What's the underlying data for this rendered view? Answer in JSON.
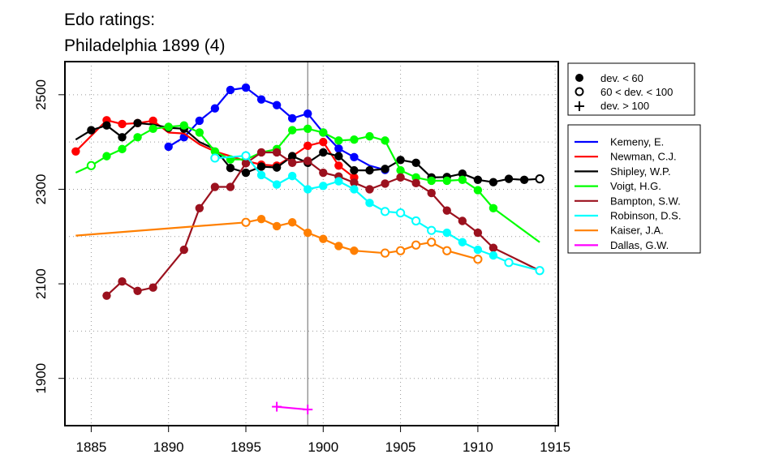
{
  "chart_data": {
    "type": "line",
    "title_lines": [
      "Edo ratings:",
      "Philadelphia 1899 (4)"
    ],
    "xlabel": "",
    "ylabel": "",
    "xlim": [
      1883.3,
      1915.2
    ],
    "ylim": [
      1800,
      2570
    ],
    "x_ticks": [
      1885,
      1890,
      1895,
      1900,
      1905,
      1910,
      1915
    ],
    "y_ticks": [
      1900,
      2100,
      2300,
      2500
    ],
    "y_grid": [
      1900,
      2000,
      2100,
      2200,
      2300,
      2400,
      2500
    ],
    "vline_x": 1899,
    "grid": true,
    "marker_legend": [
      {
        "symbol": "filled-circle",
        "label": "dev. < 60"
      },
      {
        "symbol": "open-circle",
        "label": "60 < dev. < 100"
      },
      {
        "symbol": "plus",
        "label": "dev. > 100"
      }
    ],
    "series": [
      {
        "name": "Kemeny, E.",
        "color": "#0000ff",
        "points": [
          [
            1890,
            2390,
            "f"
          ],
          [
            1891,
            2410,
            "f"
          ],
          [
            1892,
            2445,
            "f"
          ],
          [
            1893,
            2471,
            "f"
          ],
          [
            1894,
            2510,
            "f"
          ],
          [
            1895,
            2515,
            "f"
          ],
          [
            1896,
            2490,
            "f"
          ],
          [
            1897,
            2478,
            "f"
          ],
          [
            1898,
            2450,
            "f"
          ],
          [
            1899,
            2460,
            "f"
          ],
          [
            1900,
            2420,
            "f"
          ],
          [
            1901,
            2386,
            "f"
          ],
          [
            1902,
            2368,
            "f"
          ],
          [
            1903,
            2350,
            "n"
          ],
          [
            1904,
            2341,
            "f"
          ]
        ]
      },
      {
        "name": "Newman, C.J.",
        "color": "#ff0000",
        "points": [
          [
            1884,
            2380,
            "f"
          ],
          [
            1886,
            2446,
            "f"
          ],
          [
            1887,
            2438,
            "f"
          ],
          [
            1888,
            2440,
            "f"
          ],
          [
            1889,
            2445,
            "f"
          ],
          [
            1890,
            2420,
            "n"
          ],
          [
            1891,
            2418,
            "n"
          ],
          [
            1892,
            2395,
            "n"
          ],
          [
            1893,
            2380,
            "n"
          ],
          [
            1894,
            2370,
            "n"
          ],
          [
            1895,
            2360,
            "n"
          ],
          [
            1896,
            2352,
            "f"
          ],
          [
            1897,
            2350,
            "f"
          ],
          [
            1898,
            2370,
            "f"
          ],
          [
            1899,
            2392,
            "f"
          ],
          [
            1900,
            2400,
            "f"
          ],
          [
            1901,
            2350,
            "f"
          ],
          [
            1902,
            2325,
            "f"
          ]
        ]
      },
      {
        "name": "Shipley, W.P.",
        "color": "#000000",
        "points": [
          [
            1884,
            2405,
            "n"
          ],
          [
            1885,
            2425,
            "f"
          ],
          [
            1886,
            2435,
            "f"
          ],
          [
            1887,
            2410,
            "f"
          ],
          [
            1888,
            2440,
            "f"
          ],
          [
            1889,
            2437,
            "n"
          ],
          [
            1890,
            2430,
            "f"
          ],
          [
            1891,
            2428,
            "f"
          ],
          [
            1892,
            2400,
            "n"
          ],
          [
            1893,
            2385,
            "n"
          ],
          [
            1894,
            2345,
            "f"
          ],
          [
            1895,
            2335,
            "f"
          ],
          [
            1896,
            2348,
            "f"
          ],
          [
            1897,
            2346,
            "f"
          ],
          [
            1898,
            2370,
            "f"
          ],
          [
            1899,
            2356,
            "f"
          ],
          [
            1900,
            2378,
            "f"
          ],
          [
            1901,
            2370,
            "f"
          ],
          [
            1902,
            2340,
            "f"
          ],
          [
            1903,
            2340,
            "f"
          ],
          [
            1904,
            2343,
            "f"
          ],
          [
            1905,
            2362,
            "f"
          ],
          [
            1906,
            2356,
            "f"
          ],
          [
            1907,
            2325,
            "f"
          ],
          [
            1908,
            2326,
            "f"
          ],
          [
            1909,
            2333,
            "f"
          ],
          [
            1910,
            2320,
            "f"
          ],
          [
            1911,
            2315,
            "f"
          ],
          [
            1912,
            2322,
            "f"
          ],
          [
            1913,
            2320,
            "f"
          ],
          [
            1914,
            2322,
            "o"
          ]
        ]
      },
      {
        "name": "Voigt, H.G.",
        "color": "#00ff00",
        "points": [
          [
            1884,
            2335,
            "n"
          ],
          [
            1885,
            2350,
            "o"
          ],
          [
            1886,
            2370,
            "f"
          ],
          [
            1887,
            2385,
            "f"
          ],
          [
            1888,
            2410,
            "f"
          ],
          [
            1889,
            2428,
            "f"
          ],
          [
            1890,
            2432,
            "f"
          ],
          [
            1891,
            2435,
            "f"
          ],
          [
            1892,
            2420,
            "f"
          ],
          [
            1893,
            2380,
            "f"
          ],
          [
            1894,
            2363,
            "f"
          ],
          [
            1895,
            2363,
            "f"
          ],
          [
            1896,
            2378,
            "n"
          ],
          [
            1897,
            2385,
            "f"
          ],
          [
            1898,
            2425,
            "f"
          ],
          [
            1899,
            2428,
            "f"
          ],
          [
            1900,
            2420,
            "f"
          ],
          [
            1901,
            2403,
            "f"
          ],
          [
            1902,
            2405,
            "f"
          ],
          [
            1903,
            2412,
            "f"
          ],
          [
            1904,
            2403,
            "f"
          ],
          [
            1905,
            2340,
            "f"
          ],
          [
            1906,
            2325,
            "f"
          ],
          [
            1907,
            2318,
            "f"
          ],
          [
            1908,
            2318,
            "f"
          ],
          [
            1909,
            2320,
            "f"
          ],
          [
            1910,
            2298,
            "f"
          ],
          [
            1911,
            2260,
            "f"
          ],
          [
            1914,
            2188,
            "n"
          ]
        ]
      },
      {
        "name": "Bampton, S.W.",
        "color": "#9b111e",
        "points": [
          [
            1886,
            2075,
            "f"
          ],
          [
            1887,
            2105,
            "f"
          ],
          [
            1888,
            2085,
            "f"
          ],
          [
            1889,
            2092,
            "f"
          ],
          [
            1891,
            2172,
            "f"
          ],
          [
            1892,
            2260,
            "f"
          ],
          [
            1893,
            2305,
            "f"
          ],
          [
            1894,
            2305,
            "f"
          ],
          [
            1895,
            2355,
            "f"
          ],
          [
            1896,
            2378,
            "f"
          ],
          [
            1897,
            2378,
            "f"
          ],
          [
            1898,
            2356,
            "f"
          ],
          [
            1899,
            2360,
            "f"
          ],
          [
            1900,
            2335,
            "f"
          ],
          [
            1901,
            2327,
            "f"
          ],
          [
            1902,
            2314,
            "f"
          ],
          [
            1903,
            2300,
            "f"
          ],
          [
            1904,
            2312,
            "f"
          ],
          [
            1905,
            2325,
            "f"
          ],
          [
            1906,
            2313,
            "f"
          ],
          [
            1907,
            2292,
            "f"
          ],
          [
            1908,
            2255,
            "f"
          ],
          [
            1909,
            2233,
            "f"
          ],
          [
            1910,
            2208,
            "f"
          ],
          [
            1911,
            2176,
            "f"
          ],
          [
            1914,
            2128,
            "n"
          ]
        ]
      },
      {
        "name": "Robinson, D.S.",
        "color": "#00ffff",
        "points": [
          [
            1893,
            2366,
            "o"
          ],
          [
            1894,
            2368,
            "n"
          ],
          [
            1895,
            2371,
            "o"
          ],
          [
            1896,
            2330,
            "f"
          ],
          [
            1897,
            2310,
            "f"
          ],
          [
            1898,
            2328,
            "f"
          ],
          [
            1899,
            2300,
            "f"
          ],
          [
            1900,
            2307,
            "f"
          ],
          [
            1901,
            2317,
            "f"
          ],
          [
            1902,
            2300,
            "f"
          ],
          [
            1903,
            2271,
            "f"
          ],
          [
            1904,
            2253,
            "o"
          ],
          [
            1905,
            2250,
            "o"
          ],
          [
            1906,
            2233,
            "o"
          ],
          [
            1907,
            2213,
            "o"
          ],
          [
            1908,
            2208,
            "f"
          ],
          [
            1909,
            2188,
            "f"
          ],
          [
            1910,
            2172,
            "f"
          ],
          [
            1911,
            2160,
            "f"
          ],
          [
            1912,
            2145,
            "o"
          ],
          [
            1914,
            2128,
            "o"
          ]
        ]
      },
      {
        "name": "Kaiser, J.A.",
        "color": "#ff7f00",
        "points": [
          [
            1884,
            2202,
            "n"
          ],
          [
            1895,
            2230,
            "o"
          ],
          [
            1896,
            2237,
            "f"
          ],
          [
            1897,
            2222,
            "f"
          ],
          [
            1898,
            2230,
            "f"
          ],
          [
            1899,
            2208,
            "f"
          ],
          [
            1900,
            2195,
            "f"
          ],
          [
            1901,
            2180,
            "f"
          ],
          [
            1902,
            2170,
            "f"
          ],
          [
            1904,
            2165,
            "o"
          ],
          [
            1905,
            2170,
            "o"
          ],
          [
            1906,
            2182,
            "o"
          ],
          [
            1907,
            2188,
            "o"
          ],
          [
            1908,
            2170,
            "o"
          ],
          [
            1910,
            2152,
            "o"
          ]
        ]
      },
      {
        "name": "Dallas, G.W.",
        "color": "#ff00ff",
        "points": [
          [
            1897,
            1840,
            "p"
          ],
          [
            1899,
            1834,
            "p"
          ]
        ]
      }
    ]
  }
}
